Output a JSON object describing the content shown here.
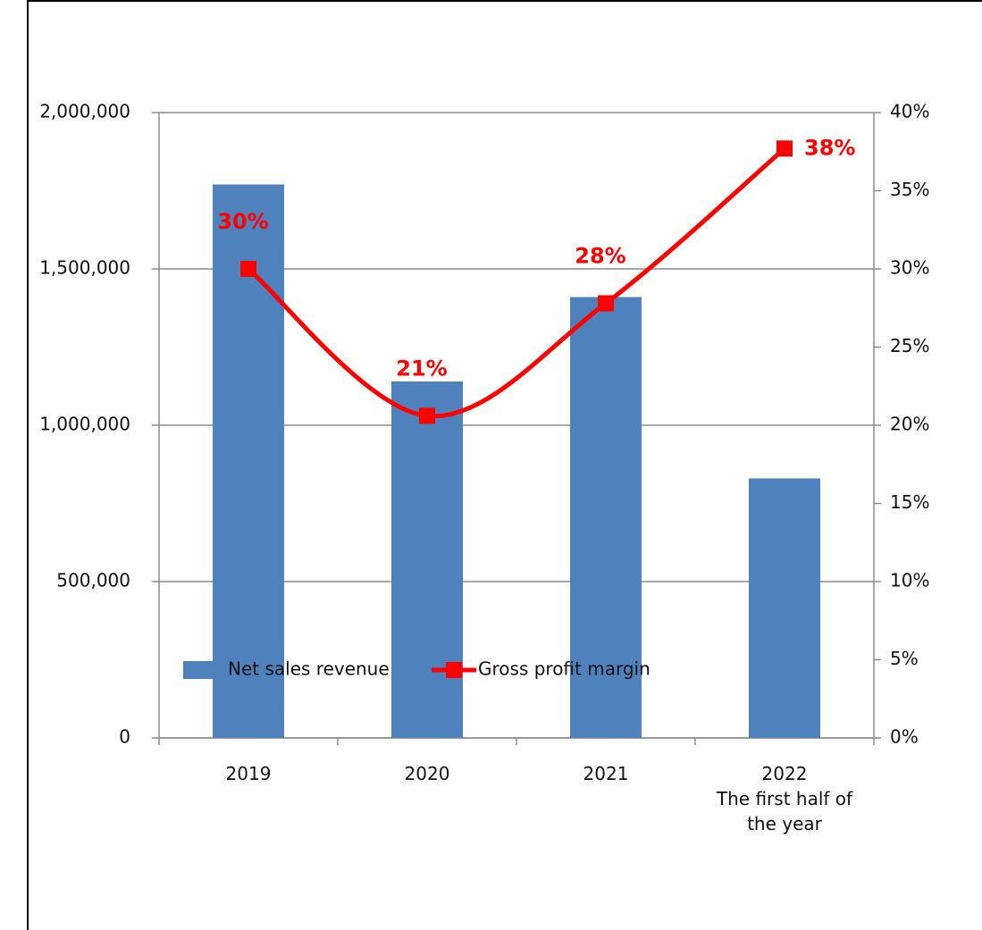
{
  "chart_data": {
    "type": "bar-line",
    "categories": [
      "2019",
      "2020",
      "2021",
      "2022\nThe first half of\nthe year"
    ],
    "series": [
      {
        "name": "Net sales revenue",
        "type": "bar",
        "color": "#4f81bd",
        "values": [
          1770000,
          1140000,
          1410000,
          830000
        ]
      },
      {
        "name": "Gross profit margin",
        "type": "line",
        "axis": "y2",
        "color": "#ff0000",
        "values": [
          30,
          20.6,
          27.8,
          37.7
        ],
        "value_labels": [
          "30%",
          "21%",
          "28%",
          "38%"
        ]
      }
    ],
    "ylim": [
      0,
      2000000
    ],
    "yticks": [
      0,
      {
        "value": 500000,
        "label": "500,000"
      },
      {
        "value": 1000000,
        "label": "1,000,000"
      },
      {
        "value": 1500000,
        "label": "1,500,000"
      },
      {
        "value": 2000000,
        "label": "2,000,000"
      }
    ],
    "y2lim": [
      0,
      40
    ],
    "y2ticks": [
      {
        "value": 0,
        "label": "0%"
      },
      {
        "value": 5,
        "label": "5%"
      },
      {
        "value": 10,
        "label": "10%"
      },
      {
        "value": 15,
        "label": "15%"
      },
      {
        "value": 20,
        "label": "20%"
      },
      {
        "value": 25,
        "label": "25%"
      },
      {
        "value": 30,
        "label": "30%"
      },
      {
        "value": 35,
        "label": "35%"
      },
      {
        "value": 40,
        "label": "40%"
      }
    ],
    "grid": true,
    "legend": "bottom"
  }
}
